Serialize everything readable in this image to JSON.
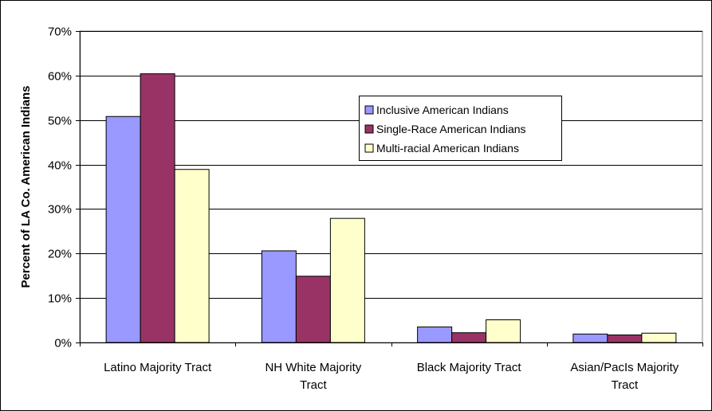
{
  "chart_data": {
    "type": "bar",
    "title": "",
    "xlabel": "",
    "ylabel": "Percent of LA Co. American Indians",
    "ylim": [
      0,
      70
    ],
    "yticks": [
      "0%",
      "10%",
      "20%",
      "30%",
      "40%",
      "50%",
      "60%",
      "70%"
    ],
    "categories": [
      [
        "Latino Majority Tract"
      ],
      [
        "NH White Majority",
        "Tract"
      ],
      [
        "Black Majority Tract"
      ],
      [
        "Asian/PacIs Majority",
        "Tract"
      ]
    ],
    "series": [
      {
        "name": "Inclusive American Indians",
        "color": "#9999ff",
        "values": [
          50.8,
          20.6,
          3.5,
          1.9
        ]
      },
      {
        "name": "Single-Race American Indians",
        "color": "#993366",
        "values": [
          60.4,
          14.9,
          2.2,
          1.7
        ]
      },
      {
        "name": "Multi-racial American Indians",
        "color": "#ffffcc",
        "values": [
          38.9,
          27.9,
          5.1,
          2.1
        ]
      }
    ],
    "grid": true,
    "legend_position": "upper-right inside plot"
  }
}
